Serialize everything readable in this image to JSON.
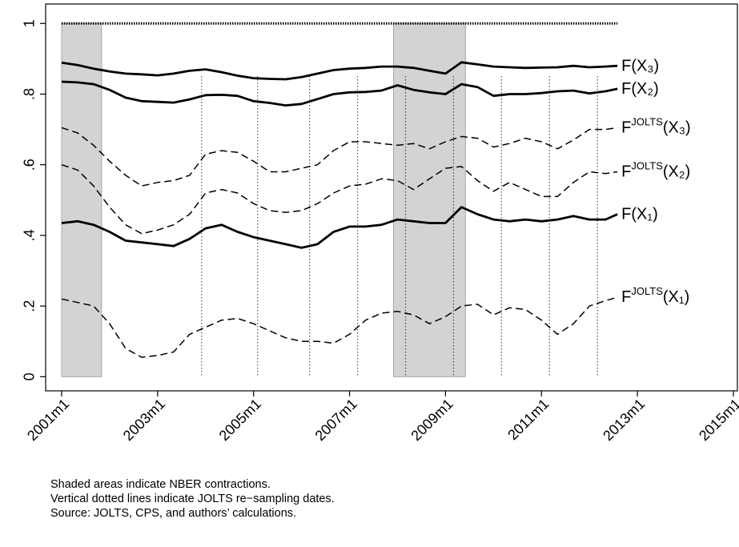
{
  "chart_data": {
    "type": "line",
    "x": [
      492,
      496,
      500,
      504,
      508,
      512,
      516,
      520,
      524,
      528,
      532,
      536,
      540,
      544,
      548,
      552,
      556,
      560,
      564,
      568,
      572,
      576,
      580,
      584,
      588,
      592,
      596,
      600,
      604,
      608,
      612,
      616,
      620,
      624,
      628,
      631
    ],
    "xlim": [
      488,
      661
    ],
    "xticks": [
      {
        "value": 492,
        "label": "2001m1"
      },
      {
        "value": 516,
        "label": "2003m1"
      },
      {
        "value": 540,
        "label": "2005m1"
      },
      {
        "value": 564,
        "label": "2007m1"
      },
      {
        "value": 588,
        "label": "2009m1"
      },
      {
        "value": 612,
        "label": "2011m1"
      },
      {
        "value": 636,
        "label": "2013m1"
      },
      {
        "value": 660,
        "label": "2015m1"
      }
    ],
    "ylim": [
      -0.04,
      1.055
    ],
    "yticks": [
      0,
      {
        "value": 0.2,
        "label": ".2"
      },
      {
        "value": 0.4,
        "label": ".4"
      },
      {
        "value": 0.6,
        "label": ".6"
      },
      {
        "value": 0.8,
        "label": ".8"
      },
      1
    ],
    "shaded_regions": [
      [
        492,
        502
      ],
      [
        575,
        593
      ]
    ],
    "shade_color": "#d3d3d3",
    "band_ylim": [
      0,
      1
    ],
    "vlines": [
      527,
      541,
      554,
      566,
      578,
      590,
      602,
      614,
      626
    ],
    "vline_ylim": [
      0,
      0.85
    ],
    "series": [
      {
        "color": "#000000",
        "style": "dotted",
        "values": [
          1,
          1,
          1,
          1,
          1,
          1,
          1,
          1,
          1,
          1,
          1,
          1,
          1,
          1,
          1,
          1,
          1,
          1,
          1,
          1,
          1,
          1,
          1,
          1,
          1,
          1,
          1,
          1,
          1,
          1,
          1,
          1,
          1,
          1,
          1,
          1
        ]
      },
      {
        "name": "F(X₃)",
        "color": "#000000",
        "style": "solid",
        "values": [
          0.889,
          0.882,
          0.872,
          0.864,
          0.858,
          0.856,
          0.853,
          0.858,
          0.866,
          0.87,
          0.862,
          0.852,
          0.845,
          0.843,
          0.842,
          0.848,
          0.858,
          0.868,
          0.872,
          0.874,
          0.878,
          0.878,
          0.874,
          0.866,
          0.858,
          0.89,
          0.884,
          0.878,
          0.876,
          0.874,
          0.875,
          0.876,
          0.88,
          0.876,
          0.878,
          0.88
        ]
      },
      {
        "name": "F(X₂)",
        "color": "#000000",
        "style": "solid",
        "values": [
          0.835,
          0.833,
          0.828,
          0.812,
          0.79,
          0.78,
          0.778,
          0.776,
          0.785,
          0.797,
          0.798,
          0.795,
          0.78,
          0.775,
          0.768,
          0.772,
          0.786,
          0.8,
          0.805,
          0.806,
          0.81,
          0.825,
          0.812,
          0.805,
          0.8,
          0.828,
          0.82,
          0.795,
          0.8,
          0.8,
          0.803,
          0.808,
          0.81,
          0.802,
          0.808,
          0.815
        ]
      },
      {
        "name": "FJOLTS(X₃)",
        "superscript_chars": [
          1,
          6
        ],
        "color": "#000000",
        "style": "dashed",
        "values": [
          0.705,
          0.69,
          0.655,
          0.61,
          0.57,
          0.54,
          0.55,
          0.555,
          0.57,
          0.63,
          0.64,
          0.635,
          0.61,
          0.58,
          0.58,
          0.59,
          0.6,
          0.64,
          0.665,
          0.665,
          0.66,
          0.655,
          0.66,
          0.645,
          0.665,
          0.68,
          0.675,
          0.65,
          0.66,
          0.675,
          0.665,
          0.645,
          0.67,
          0.7,
          0.7,
          0.705
        ]
      },
      {
        "name": "FJOLTS(X₂)",
        "superscript_chars": [
          1,
          6
        ],
        "color": "#000000",
        "style": "dashed",
        "values": [
          0.6,
          0.585,
          0.54,
          0.48,
          0.43,
          0.405,
          0.415,
          0.43,
          0.46,
          0.52,
          0.53,
          0.52,
          0.49,
          0.47,
          0.465,
          0.47,
          0.49,
          0.52,
          0.54,
          0.545,
          0.56,
          0.555,
          0.53,
          0.56,
          0.59,
          0.595,
          0.555,
          0.525,
          0.55,
          0.53,
          0.51,
          0.51,
          0.55,
          0.58,
          0.575,
          0.58
        ]
      },
      {
        "name": "F(X₁)",
        "color": "#000000",
        "style": "solid",
        "values": [
          0.435,
          0.44,
          0.43,
          0.41,
          0.385,
          0.38,
          0.375,
          0.37,
          0.39,
          0.42,
          0.43,
          0.41,
          0.395,
          0.385,
          0.375,
          0.365,
          0.375,
          0.41,
          0.425,
          0.425,
          0.43,
          0.445,
          0.44,
          0.435,
          0.435,
          0.48,
          0.46,
          0.445,
          0.44,
          0.445,
          0.44,
          0.445,
          0.455,
          0.445,
          0.445,
          0.46
        ]
      },
      {
        "name": "FJOLTS(X₁)",
        "superscript_chars": [
          1,
          6
        ],
        "color": "#000000",
        "style": "dashed",
        "values": [
          0.22,
          0.21,
          0.2,
          0.15,
          0.08,
          0.055,
          0.06,
          0.07,
          0.12,
          0.14,
          0.16,
          0.165,
          0.15,
          0.13,
          0.11,
          0.1,
          0.1,
          0.095,
          0.12,
          0.16,
          0.18,
          0.185,
          0.175,
          0.15,
          0.17,
          0.2,
          0.205,
          0.175,
          0.195,
          0.19,
          0.16,
          0.12,
          0.15,
          0.2,
          0.215,
          0.225
        ]
      }
    ],
    "notes": [
      "Shaded areas indicate NBER contractions.",
      "Vertical dotted lines indicate JOLTS re−sampling dates.",
      "Source: JOLTS, CPS, and authors’ calculations."
    ]
  }
}
